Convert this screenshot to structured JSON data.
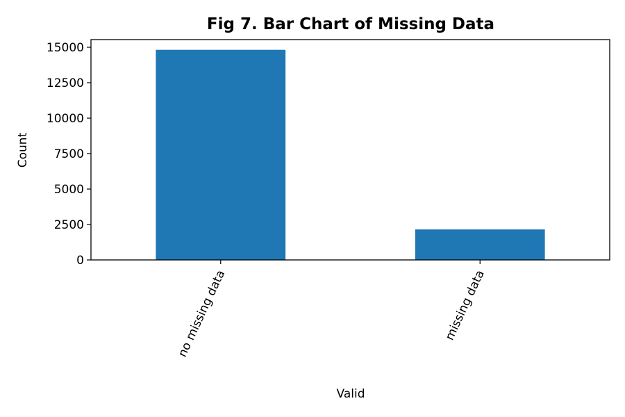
{
  "chart_data": {
    "type": "bar",
    "title": "Fig 7. Bar Chart of Missing Data",
    "xlabel": "Valid",
    "ylabel": "Count",
    "categories": [
      "no missing data",
      "missing data"
    ],
    "values": [
      14820,
      2150
    ],
    "ylim": [
      0,
      15540
    ],
    "yticks": [
      0,
      2500,
      5000,
      7500,
      10000,
      12500,
      15000
    ],
    "bar_color": "#1f77b4",
    "grid": false,
    "legend": "none"
  }
}
